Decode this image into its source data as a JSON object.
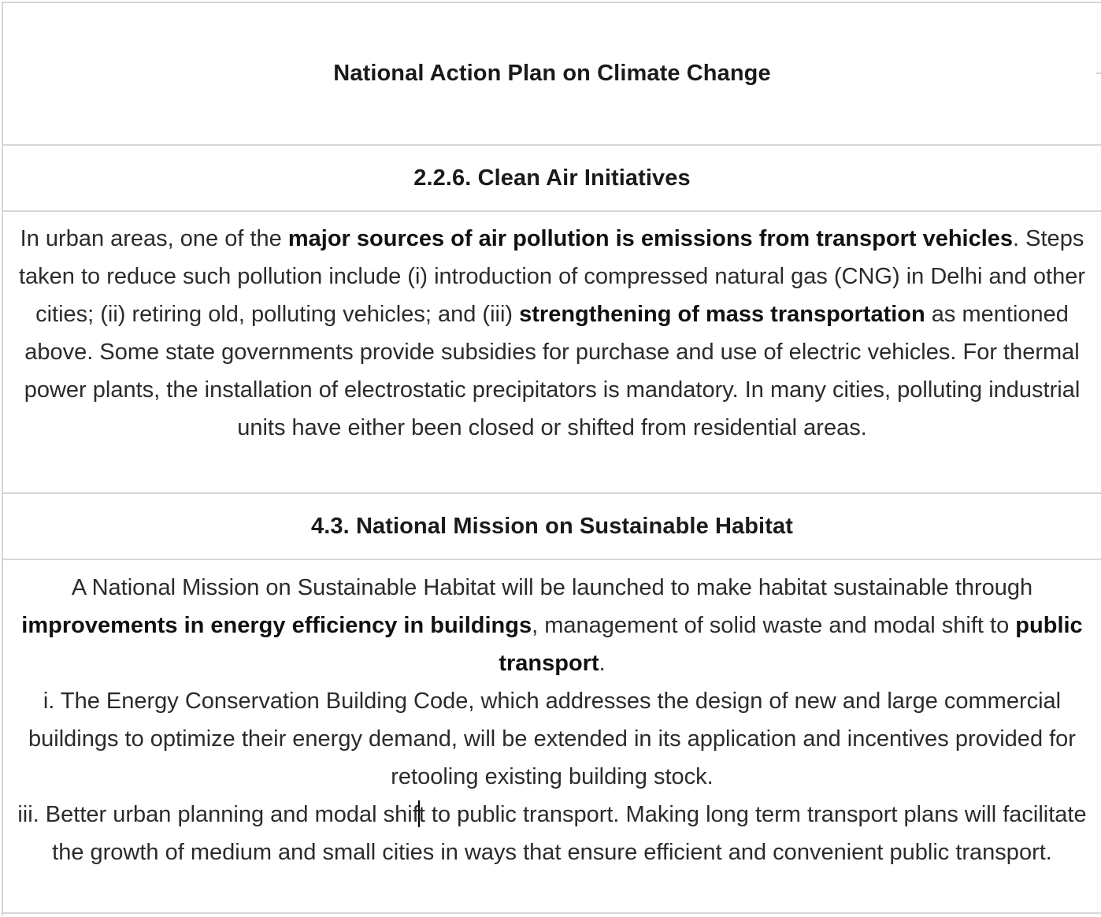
{
  "title": "National Action Plan on Climate Change",
  "section1": {
    "heading": "2.2.6. Clean Air Initiatives",
    "p_a": "In urban areas, one of the ",
    "p_b": "major sources of air pollution is emissions from transport vehicles",
    "p_c": ". Steps taken to reduce such pollution include (i) introduction of compressed natural gas (CNG) in Delhi and other cities; (ii) retiring old, polluting vehicles; and (iii) ",
    "p_d": "strengthening of mass transportation",
    "p_e": " as mentioned above. Some state governments provide subsidies for purchase and use of electric vehicles. For thermal power plants, the installation of electrostatic precipitators is mandatory. In many cities, polluting industrial units have either been closed or shifted from residential areas."
  },
  "section2": {
    "heading": "4.3. National Mission on Sustainable Habitat",
    "p_a": "A National Mission on Sustainable Habitat will be launched to make habitat sustainable through ",
    "p_b": "improvements in energy efficiency in buildings",
    "p_c": ", management of solid waste and modal shift to ",
    "p_d": "public transport",
    "p_e": ".",
    "item1": "i. The Energy Conservation Building Code, which addresses the design of new and large commercial buildings to optimize their energy demand, will be extended in its application and incentives provided for retooling existing building stock.",
    "item3_a": "iii. Better urban planning and modal shif",
    "item3_b": "t to public transport. Making long term transport plans will facilitate the growth of medium and small cities in ways that ensure efficient and convenient public transport."
  }
}
